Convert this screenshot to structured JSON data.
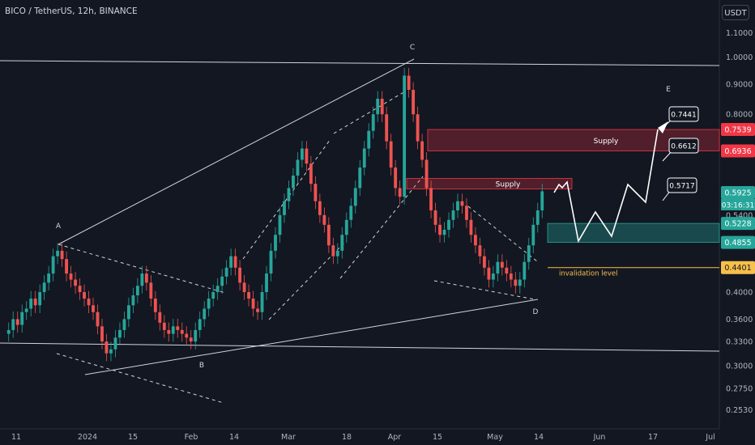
{
  "header": {
    "title": "BICO / TetherUS, 12h, BINANCE",
    "unit_button": "USDT"
  },
  "colors": {
    "background": "#131722",
    "up": "#26a69a",
    "down": "#ef5350",
    "supply": "#f23645",
    "demand": "#26a69a",
    "invalidation": "#f7c04a",
    "line": "#d1d4dc"
  },
  "chart_data": {
    "type": "candlestick",
    "scale": "log",
    "ylim": [
      0.24,
      1.18
    ],
    "yticks": [
      "1.1000",
      "1.0000",
      "0.9000",
      "0.8000",
      "0.5400",
      "0.4000",
      "0.3600",
      "0.3300",
      "0.3000",
      "0.2750",
      "0.2530"
    ],
    "xticks": [
      "11",
      "2024",
      "15",
      "Feb",
      "14",
      "Mar",
      "18",
      "Apr",
      "15",
      "May",
      "14",
      "Jun",
      "17",
      "Jul"
    ],
    "price_labels": [
      {
        "value": 0.7539,
        "text": "0.7539",
        "kind": "supply"
      },
      {
        "value": 0.6936,
        "text": "0.6936",
        "kind": "supply"
      },
      {
        "value": 0.5925,
        "text": "0.5925",
        "kind": "current"
      },
      {
        "value": 0.5228,
        "text": "0.5228",
        "kind": "demand"
      },
      {
        "value": 0.4855,
        "text": "0.4855",
        "kind": "demand"
      },
      {
        "value": 0.4401,
        "text": "0.4401",
        "kind": "invalidation"
      }
    ],
    "countdown": "03:16:31",
    "zones": [
      {
        "label": "Supply",
        "top": 0.7539,
        "bottom": 0.6936,
        "kind": "supply"
      },
      {
        "label": "Supply",
        "top": 0.623,
        "bottom": 0.598,
        "kind": "supply"
      },
      {
        "label": "",
        "top": 0.5228,
        "bottom": 0.4855,
        "kind": "demand"
      }
    ],
    "invalidation": {
      "label": "invalidation level",
      "value": 0.4401
    },
    "wave_labels": [
      "A",
      "B",
      "C",
      "D",
      "E"
    ],
    "targets": [
      "0.7441",
      "0.6612",
      "0.5717"
    ],
    "candles_daily_close": [
      [
        0.34,
        0.345
      ],
      [
        0.345,
        0.36
      ],
      [
        0.36,
        0.352
      ],
      [
        0.352,
        0.37
      ],
      [
        0.37,
        0.375
      ],
      [
        0.375,
        0.39
      ],
      [
        0.39,
        0.38
      ],
      [
        0.38,
        0.4
      ],
      [
        0.4,
        0.415
      ],
      [
        0.415,
        0.43
      ],
      [
        0.43,
        0.46
      ],
      [
        0.46,
        0.47
      ],
      [
        0.47,
        0.455
      ],
      [
        0.455,
        0.43
      ],
      [
        0.43,
        0.42
      ],
      [
        0.42,
        0.41
      ],
      [
        0.41,
        0.4
      ],
      [
        0.4,
        0.39
      ],
      [
        0.39,
        0.38
      ],
      [
        0.38,
        0.37
      ],
      [
        0.37,
        0.35
      ],
      [
        0.35,
        0.33
      ],
      [
        0.33,
        0.315
      ],
      [
        0.315,
        0.32
      ],
      [
        0.32,
        0.335
      ],
      [
        0.335,
        0.345
      ],
      [
        0.345,
        0.36
      ],
      [
        0.36,
        0.38
      ],
      [
        0.38,
        0.395
      ],
      [
        0.395,
        0.41
      ],
      [
        0.41,
        0.43
      ],
      [
        0.43,
        0.415
      ],
      [
        0.415,
        0.39
      ],
      [
        0.39,
        0.37
      ],
      [
        0.37,
        0.355
      ],
      [
        0.355,
        0.345
      ],
      [
        0.345,
        0.34
      ],
      [
        0.34,
        0.35
      ],
      [
        0.35,
        0.345
      ],
      [
        0.345,
        0.34
      ],
      [
        0.34,
        0.335
      ],
      [
        0.335,
        0.33
      ],
      [
        0.33,
        0.345
      ],
      [
        0.345,
        0.36
      ],
      [
        0.36,
        0.375
      ],
      [
        0.375,
        0.39
      ],
      [
        0.39,
        0.4
      ],
      [
        0.4,
        0.41
      ],
      [
        0.41,
        0.425
      ],
      [
        0.425,
        0.44
      ],
      [
        0.44,
        0.46
      ],
      [
        0.46,
        0.44
      ],
      [
        0.44,
        0.415
      ],
      [
        0.415,
        0.4
      ],
      [
        0.4,
        0.39
      ],
      [
        0.39,
        0.375
      ],
      [
        0.375,
        0.37
      ],
      [
        0.37,
        0.4
      ],
      [
        0.4,
        0.43
      ],
      [
        0.43,
        0.47
      ],
      [
        0.47,
        0.5
      ],
      [
        0.5,
        0.54
      ],
      [
        0.54,
        0.57
      ],
      [
        0.57,
        0.6
      ],
      [
        0.6,
        0.63
      ],
      [
        0.63,
        0.67
      ],
      [
        0.67,
        0.7
      ],
      [
        0.7,
        0.66
      ],
      [
        0.66,
        0.61
      ],
      [
        0.61,
        0.57
      ],
      [
        0.57,
        0.54
      ],
      [
        0.54,
        0.52
      ],
      [
        0.52,
        0.48
      ],
      [
        0.48,
        0.46
      ],
      [
        0.46,
        0.47
      ],
      [
        0.47,
        0.5
      ],
      [
        0.5,
        0.53
      ],
      [
        0.53,
        0.56
      ],
      [
        0.56,
        0.6
      ],
      [
        0.6,
        0.65
      ],
      [
        0.65,
        0.7
      ],
      [
        0.7,
        0.75
      ],
      [
        0.75,
        0.8
      ],
      [
        0.8,
        0.85
      ],
      [
        0.85,
        0.8
      ],
      [
        0.8,
        0.72
      ],
      [
        0.72,
        0.65
      ],
      [
        0.65,
        0.6
      ],
      [
        0.6,
        0.58
      ],
      [
        0.58,
        0.93
      ],
      [
        0.93,
        0.88
      ],
      [
        0.88,
        0.8
      ],
      [
        0.8,
        0.72
      ],
      [
        0.72,
        0.67
      ],
      [
        0.67,
        0.6
      ],
      [
        0.6,
        0.55
      ],
      [
        0.55,
        0.52
      ],
      [
        0.52,
        0.5
      ],
      [
        0.5,
        0.51
      ],
      [
        0.51,
        0.53
      ],
      [
        0.53,
        0.55
      ],
      [
        0.55,
        0.57
      ],
      [
        0.57,
        0.56
      ],
      [
        0.56,
        0.53
      ],
      [
        0.53,
        0.5
      ],
      [
        0.5,
        0.48
      ],
      [
        0.48,
        0.46
      ],
      [
        0.46,
        0.44
      ],
      [
        0.44,
        0.42
      ],
      [
        0.42,
        0.43
      ],
      [
        0.43,
        0.45
      ],
      [
        0.45,
        0.44
      ],
      [
        0.44,
        0.43
      ],
      [
        0.43,
        0.42
      ],
      [
        0.42,
        0.41
      ],
      [
        0.41,
        0.42
      ],
      [
        0.42,
        0.45
      ],
      [
        0.45,
        0.48
      ],
      [
        0.48,
        0.52
      ],
      [
        0.52,
        0.55
      ],
      [
        0.55,
        0.5925
      ]
    ]
  }
}
